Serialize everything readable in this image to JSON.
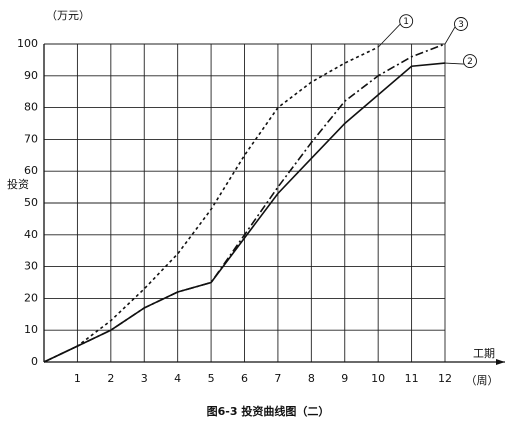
{
  "chart_data": {
    "type": "line",
    "caption": "图6-3   投资曲线图（二）",
    "y_label": "投资",
    "y_unit": "（万元）",
    "x_label": "工期",
    "x_unit": "（周）",
    "x": [
      0,
      1,
      2,
      3,
      4,
      5,
      6,
      7,
      8,
      9,
      10,
      11,
      12
    ],
    "xlim": [
      0,
      12
    ],
    "xticks": [
      1,
      2,
      3,
      4,
      5,
      6,
      7,
      8,
      9,
      10,
      11,
      12
    ],
    "ylim": [
      0,
      100
    ],
    "yticks": [
      0,
      10,
      20,
      30,
      40,
      50,
      60,
      70,
      80,
      90,
      100
    ],
    "grid": true,
    "series": [
      {
        "name": "1",
        "color": "#111111",
        "dash": "dotted",
        "values": [
          0,
          5,
          13,
          23,
          34,
          48,
          65,
          80,
          88,
          94,
          99,
          null,
          null
        ]
      },
      {
        "name": "2",
        "color": "#111111",
        "dash": "solid",
        "values": [
          0,
          5,
          10,
          17,
          22,
          25,
          39,
          53,
          64,
          75,
          84,
          93,
          94
        ]
      },
      {
        "name": "3",
        "color": "#111111",
        "dash": "dashdot",
        "values": [
          0,
          5,
          10,
          17,
          22,
          25,
          40,
          55,
          69,
          82,
          90,
          96,
          100
        ]
      }
    ]
  }
}
